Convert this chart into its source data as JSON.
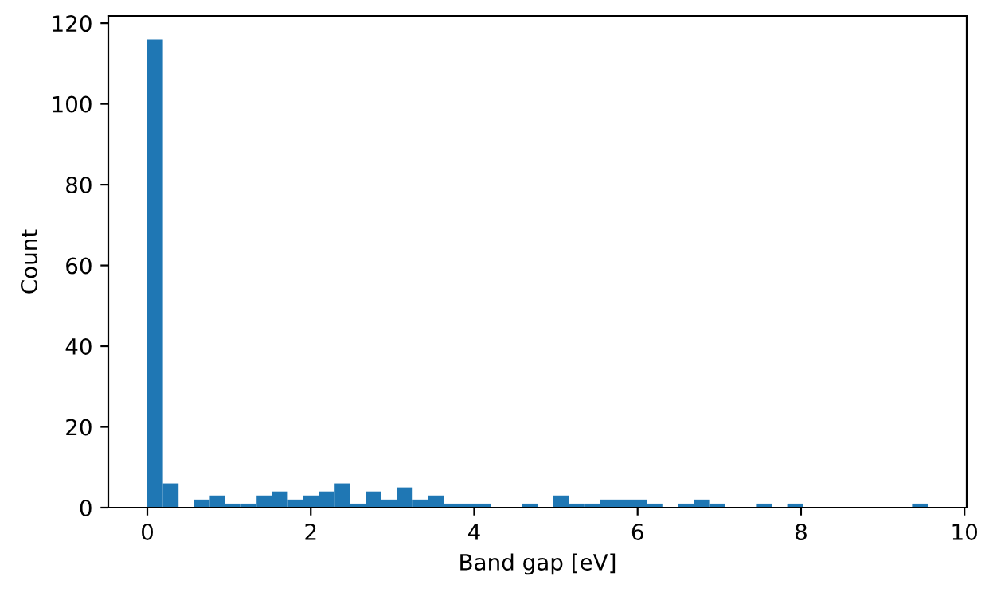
{
  "chart_data": {
    "type": "histogram",
    "xlabel": "Band gap [eV]",
    "ylabel": "Count",
    "color": "#1f77b4",
    "bins": [
      0,
      0.191,
      0.382,
      0.573,
      0.764,
      0.955,
      1.146,
      1.337,
      1.528,
      1.719,
      1.91,
      2.101,
      2.292,
      2.483,
      2.674,
      2.865,
      3.056,
      3.247,
      3.438,
      3.629,
      3.82,
      4.011,
      4.202,
      4.393,
      4.584,
      4.775,
      4.966,
      5.157,
      5.348,
      5.539,
      5.73,
      5.921,
      6.112,
      6.303,
      6.494,
      6.685,
      6.876,
      7.067,
      7.258,
      7.449,
      7.64,
      7.831,
      8.022,
      8.213,
      8.404,
      8.595,
      8.786,
      8.977,
      9.168,
      9.359,
      9.55
    ],
    "values": [
      116,
      6,
      0,
      2,
      3,
      1,
      1,
      3,
      4,
      2,
      3,
      4,
      6,
      1,
      4,
      2,
      5,
      2,
      3,
      1,
      1,
      1,
      0,
      0,
      1,
      0,
      3,
      1,
      1,
      2,
      2,
      2,
      1,
      0,
      1,
      2,
      1,
      0,
      0,
      1,
      0,
      1,
      0,
      0,
      0,
      0,
      0,
      0,
      0,
      1
    ],
    "xlim": [
      -0.4775,
      10.0275
    ],
    "ylim": [
      0,
      121.8
    ],
    "xticks": [
      0,
      2,
      4,
      6,
      8,
      10
    ],
    "yticks": [
      0,
      20,
      40,
      60,
      80,
      100,
      120
    ],
    "grid": false
  }
}
